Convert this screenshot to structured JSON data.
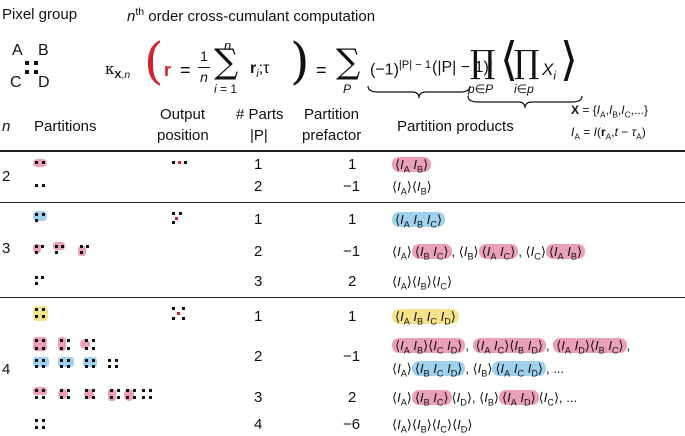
{
  "header": {
    "pixel_group": "Pixel group",
    "order_n": "n",
    "order_sup": "th",
    "order_rest": " order cross-cumulant computation",
    "pixels": [
      "A",
      "B",
      "C",
      "D"
    ]
  },
  "formula": {
    "kappa": "κ",
    "kappa_sub": "X,n",
    "r": "r",
    "frac_num": "1",
    "frac_den": "n",
    "sum_top": "n",
    "sum_bot": "i = 1",
    "ri": "r",
    "ri_sub": "i",
    "tau": ";τ",
    "sum_p": "P",
    "sign_term": "(−1)",
    "sign_exp": "|P| − 1",
    "fact_term": "(|P| − 1)!",
    "prod_p": "p∈P",
    "prod_i": "i∈p",
    "xi": "X",
    "xi_sub": "i"
  },
  "columns": {
    "n": "n",
    "partitions": "Partitions",
    "output1": "Output",
    "output2": "position",
    "parts1": "# Parts",
    "parts2": "|P|",
    "prefactor1": "Partition",
    "prefactor2": "prefactor",
    "products": "Partition products"
  },
  "definition": {
    "line1": "X = {I_A, I_B, I_C, ...}",
    "line2": "I_A = I(r_A, t − τ_A)"
  },
  "groups": [
    {
      "n": "2",
      "rows": [
        {
          "parts": "1",
          "prefactor": "1",
          "products": "⟨I_A I_B⟩"
        },
        {
          "parts": "2",
          "prefactor": "−1",
          "products": "⟨I_A⟩⟨I_B⟩"
        }
      ]
    },
    {
      "n": "3",
      "rows": [
        {
          "parts": "1",
          "prefactor": "1",
          "products": "⟨I_A I_B I_C⟩"
        },
        {
          "parts": "2",
          "prefactor": "−1",
          "products": "⟨I_A⟩⟨I_B I_C⟩, ⟨I_B⟩⟨I_A I_C⟩, ⟨I_C⟩⟨I_A I_B⟩"
        },
        {
          "parts": "3",
          "prefactor": "2",
          "products": "⟨I_A⟩⟨I_B⟩⟨I_C⟩"
        }
      ]
    },
    {
      "n": "4",
      "rows": [
        {
          "parts": "1",
          "prefactor": "1",
          "products": "⟨I_A I_B I_C I_D⟩"
        },
        {
          "parts": "2",
          "prefactor": "−1",
          "products": "⟨I_A I_B⟩⟨I_C I_D⟩, ⟨I_A I_C⟩⟨I_B I_D⟩, ⟨I_A I_D⟩⟨I_B I_C⟩, ⟨I_A⟩⟨I_B I_C I_D⟩, ⟨I_B⟩⟨I_A I_C I_D⟩, ..."
        },
        {
          "parts": "3",
          "prefactor": "2",
          "products": "⟨I_A⟩⟨I_B I_C⟩⟨I_D⟩, ⟨I_B⟩⟨I_A I_D⟩⟨I_C⟩, ..."
        },
        {
          "parts": "4",
          "prefactor": "−6",
          "products": "⟨I_A⟩⟨I_B⟩⟨I_C⟩⟨I_D⟩"
        }
      ]
    }
  ],
  "colors": {
    "pink": "#eaa0b6",
    "blue": "#9fd0ec",
    "yellow": "#f5e38c",
    "red": "#d0222a"
  }
}
